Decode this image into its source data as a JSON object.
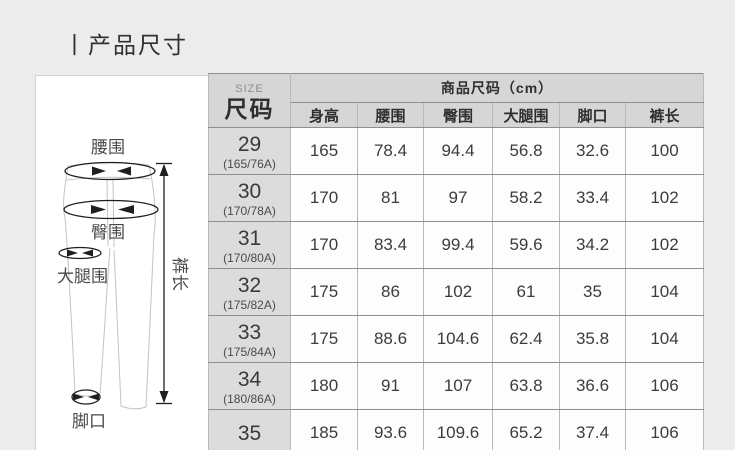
{
  "page": {
    "title": "丨产品尺寸",
    "bg_color": "#ececec"
  },
  "diagram": {
    "labels": {
      "waist": "腰围",
      "hip": "臀围",
      "thigh": "大腿围",
      "hem": "脚口",
      "length": "裤长"
    }
  },
  "table": {
    "size_header_small": "SIZE",
    "size_header": "尺码",
    "group_header": "商品尺码（cm）",
    "columns": [
      "身高",
      "腰围",
      "臀围",
      "大腿围",
      "脚口",
      "裤长"
    ],
    "rows": [
      {
        "size": "29",
        "spec": "(165/76A)",
        "values": [
          "165",
          "78.4",
          "94.4",
          "56.8",
          "32.6",
          "100"
        ]
      },
      {
        "size": "30",
        "spec": "(170/78A)",
        "values": [
          "170",
          "81",
          "97",
          "58.2",
          "33.4",
          "102"
        ]
      },
      {
        "size": "31",
        "spec": "(170/80A)",
        "values": [
          "170",
          "83.4",
          "99.4",
          "59.6",
          "34.2",
          "102"
        ]
      },
      {
        "size": "32",
        "spec": "(175/82A)",
        "values": [
          "175",
          "86",
          "102",
          "61",
          "35",
          "104"
        ]
      },
      {
        "size": "33",
        "spec": "(175/84A)",
        "values": [
          "175",
          "88.6",
          "104.6",
          "62.4",
          "35.8",
          "104"
        ]
      },
      {
        "size": "34",
        "spec": "(180/86A)",
        "values": [
          "180",
          "91",
          "107",
          "63.8",
          "36.6",
          "106"
        ]
      },
      {
        "size": "35",
        "spec": "",
        "values": [
          "185",
          "93.6",
          "109.6",
          "65.2",
          "37.4",
          "106"
        ]
      }
    ]
  },
  "colors": {
    "page_background": "#ececec",
    "panel_background": "#ffffff",
    "header_background": "#d6d6d6",
    "size_column_background": "#dcdcdc",
    "cell_background": "#fdfdfd",
    "border_dark": "#8f8f8f",
    "border_light": "#b9b9b9",
    "text_primary": "#303030",
    "diagram_outline": "#c3c3c3",
    "diagram_marks": "#1f1f1f"
  }
}
